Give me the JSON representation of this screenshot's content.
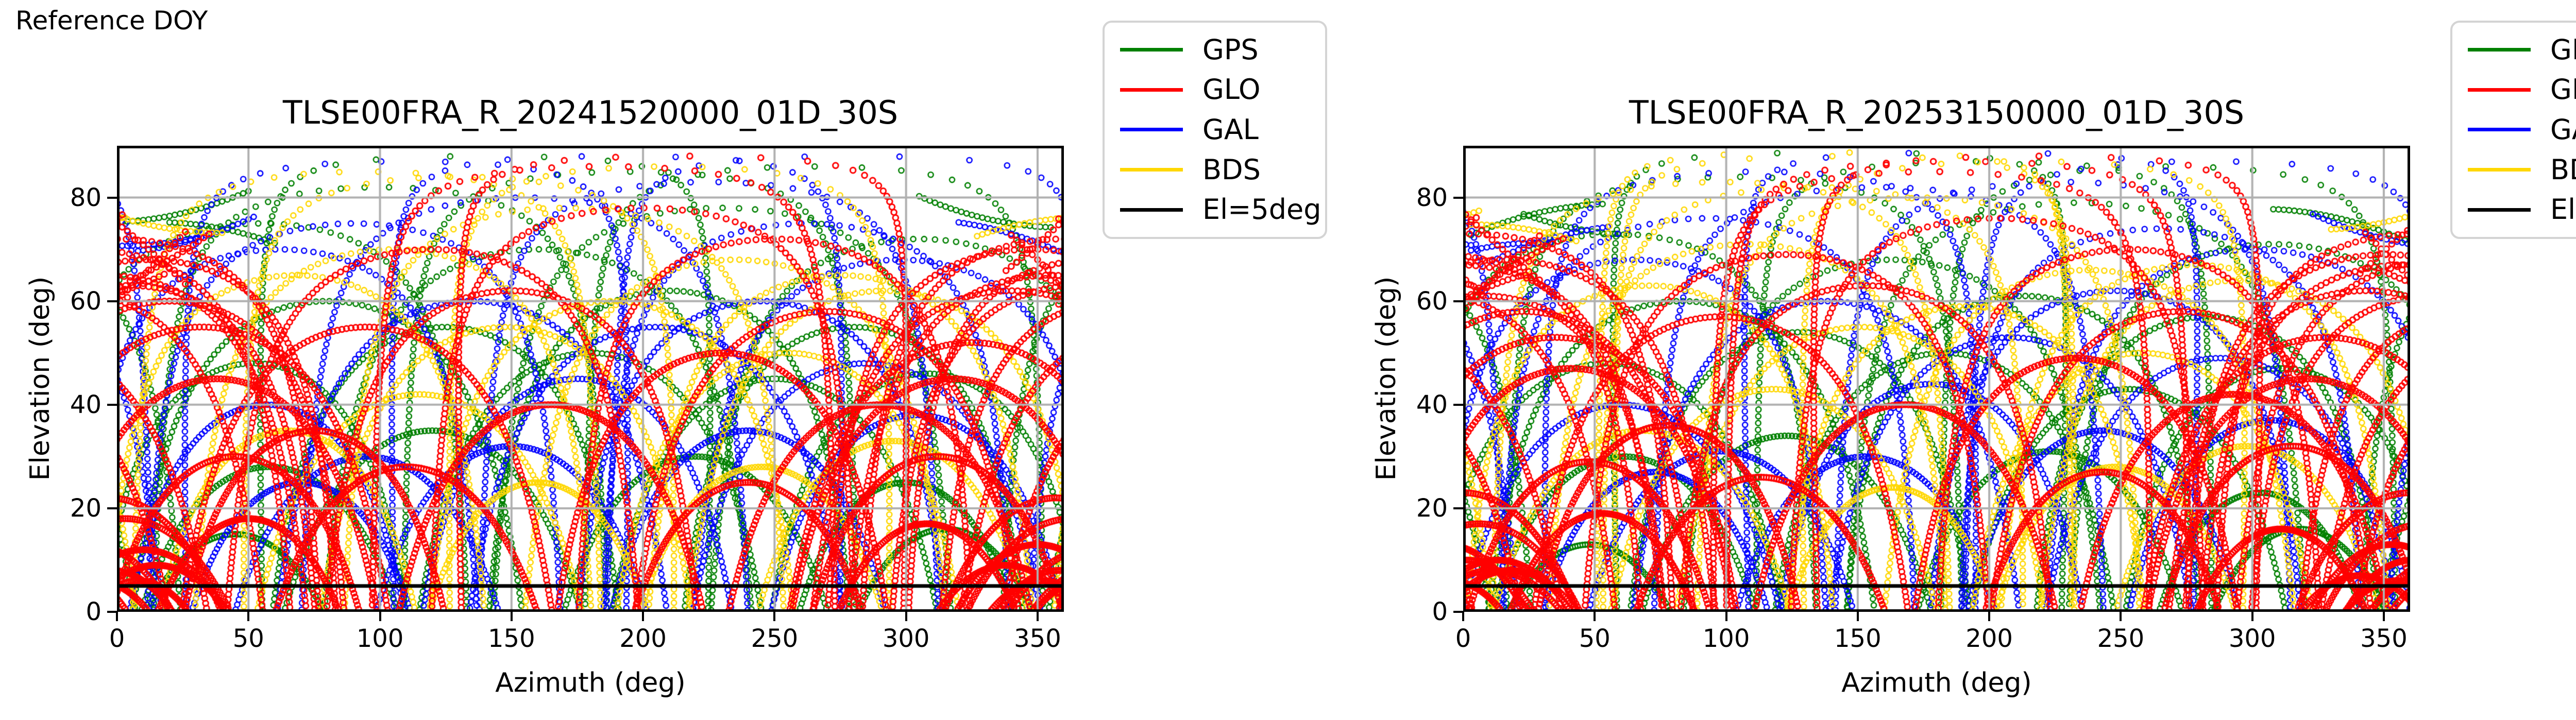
{
  "reference_label": "Reference DOY",
  "axes": {
    "xlabel": "Azimuth (deg)",
    "ylabel": "Elevation (deg)",
    "xlim": [
      0,
      360
    ],
    "ylim": [
      0,
      90
    ],
    "xticks": [
      0,
      50,
      100,
      150,
      200,
      250,
      300,
      350
    ],
    "yticks": [
      0,
      20,
      40,
      60,
      80
    ],
    "grid": true,
    "grid_color": "#b0b0b0",
    "spine_color": "#000000",
    "background": "#ffffff"
  },
  "legend": {
    "entries": [
      {
        "label": "GPS",
        "color": "#008000"
      },
      {
        "label": "GLO",
        "color": "#ff0000"
      },
      {
        "label": "GAL",
        "color": "#0000ff"
      },
      {
        "label": "BDS",
        "color": "#ffd700"
      },
      {
        "label": "El=5deg",
        "color": "#000000"
      }
    ]
  },
  "elevation_cutoff": {
    "label": "El=5deg",
    "value": 5,
    "color": "#000000"
  },
  "chart_data": {
    "type": "scatter",
    "description": "GNSS satellite sky tracks (elevation vs azimuth) for station TLSE00FRA on two reference days; tracks drawn as dense open-circle markers per constellation, black horizontal line at 5 deg elevation cutoff",
    "xlabel": "Azimuth (deg)",
    "ylabel": "Elevation (deg)",
    "xlim": [
      0,
      360
    ],
    "ylim": [
      0,
      90
    ],
    "grid": true,
    "legend_position": "outside-right",
    "panels": [
      {
        "title": "TLSE00FRA_R_20241520000_01D_30S",
        "az_shift": 0,
        "el_jitter": 0,
        "extra_passes": []
      },
      {
        "title": "TLSE00FRA_R_20253150000_01D_30S",
        "az_shift": 3,
        "el_jitter": 1,
        "extra_passes": [
          {
            "c": "BDS",
            "az": 141,
            "el": 89
          },
          {
            "c": "BDS",
            "az": 145,
            "el": 88
          },
          {
            "c": "GLO",
            "az": 178,
            "el": 85
          }
        ]
      }
    ],
    "constellations": [
      {
        "name": "GPS",
        "color": "#008000",
        "marker": "o",
        "arcs": [
          [
            55,
            75
          ],
          [
            52,
            48
          ],
          [
            58,
            28
          ],
          [
            305,
            72
          ],
          [
            308,
            46
          ],
          [
            300,
            25
          ],
          [
            80,
            60
          ],
          [
            100,
            82
          ],
          [
            125,
            55
          ],
          [
            140,
            88
          ],
          [
            160,
            70
          ],
          [
            180,
            50
          ],
          [
            195,
            85
          ],
          [
            210,
            62
          ],
          [
            230,
            78
          ],
          [
            250,
            45
          ],
          [
            265,
            86
          ],
          [
            280,
            55
          ],
          [
            120,
            35
          ],
          [
            220,
            30
          ],
          [
            45,
            15
          ],
          [
            315,
            16
          ]
        ],
        "bands": [
          [
            25,
            77,
            25,
            0.12
          ],
          [
            40,
            74,
            20,
            -0.1
          ],
          [
            330,
            76,
            25,
            -0.12
          ]
        ]
      },
      {
        "name": "GAL",
        "color": "#0000ff",
        "marker": "o",
        "arcs": [
          [
            62,
            70
          ],
          [
            57,
            40
          ],
          [
            298,
            68
          ],
          [
            304,
            38
          ],
          [
            90,
            75
          ],
          [
            110,
            87
          ],
          [
            135,
            60
          ],
          [
            155,
            80
          ],
          [
            175,
            45
          ],
          [
            190,
            88
          ],
          [
            205,
            55
          ],
          [
            225,
            83
          ],
          [
            245,
            60
          ],
          [
            262,
            75
          ],
          [
            285,
            48
          ],
          [
            150,
            32
          ],
          [
            240,
            35
          ],
          [
            70,
            25
          ],
          [
            280,
            88
          ],
          [
            95,
            30
          ]
        ],
        "bands": [
          [
            30,
            72,
            22,
            0.15
          ],
          [
            340,
            73,
            20,
            -0.15
          ],
          [
            15,
            71,
            15,
            0.05
          ]
        ]
      },
      {
        "name": "BDS",
        "color": "#ffd700",
        "marker": "o",
        "arcs": [
          [
            68,
            65
          ],
          [
            65,
            35
          ],
          [
            292,
            62
          ],
          [
            295,
            33
          ],
          [
            105,
            70
          ],
          [
            130,
            84
          ],
          [
            148,
            55
          ],
          [
            170,
            78
          ],
          [
            188,
            60
          ],
          [
            210,
            86
          ],
          [
            235,
            68
          ],
          [
            255,
            50
          ],
          [
            275,
            65
          ],
          [
            160,
            25
          ],
          [
            115,
            42
          ],
          [
            95,
            85
          ],
          [
            245,
            28
          ]
        ],
        "bands": [
          [
            20,
            74,
            20,
            -0.08
          ],
          [
            345,
            75,
            18,
            0.1
          ]
        ]
      },
      {
        "name": "GLO",
        "color": "#ff0000",
        "marker": "o",
        "arcs": [
          [
            5,
            63
          ],
          [
            12,
            68
          ],
          [
            355,
            65
          ],
          [
            348,
            70
          ],
          [
            0,
            72
          ],
          [
            20,
            60
          ],
          [
            340,
            62
          ],
          [
            38,
            45
          ],
          [
            45,
            30
          ],
          [
            50,
            18
          ],
          [
            32,
            55
          ],
          [
            318,
            45
          ],
          [
            312,
            30
          ],
          [
            308,
            17
          ],
          [
            325,
            52
          ],
          [
            10,
            12
          ],
          [
            350,
            13
          ],
          [
            358,
            8
          ],
          [
            3,
            18
          ],
          [
            357,
            22
          ],
          [
            338,
            9
          ],
          [
            352,
            6
          ],
          [
            8,
            6
          ],
          [
            15,
            9
          ],
          [
            185,
            86
          ],
          [
            200,
            78
          ],
          [
            215,
            88
          ],
          [
            95,
            55
          ],
          [
            120,
            70
          ],
          [
            150,
            62
          ],
          [
            250,
            72
          ],
          [
            270,
            58
          ],
          [
            290,
            40
          ],
          [
            230,
            50
          ],
          [
            75,
            35
          ],
          [
            110,
            28
          ],
          [
            165,
            40
          ],
          [
            240,
            25
          ]
        ],
        "bands": [
          [
            12,
            66,
            14,
            0.5
          ],
          [
            12,
            70,
            14,
            -0.45
          ],
          [
            8,
            63,
            10,
            0.2
          ],
          [
            352,
            67,
            12,
            -0.5
          ],
          [
            350,
            71,
            12,
            0.45
          ],
          [
            355,
            64,
            8,
            -0.2
          ],
          [
            20,
            68,
            15,
            0.3
          ]
        ]
      }
    ],
    "draw_order": [
      "GPS",
      "GAL",
      "BDS",
      "GLO"
    ]
  }
}
